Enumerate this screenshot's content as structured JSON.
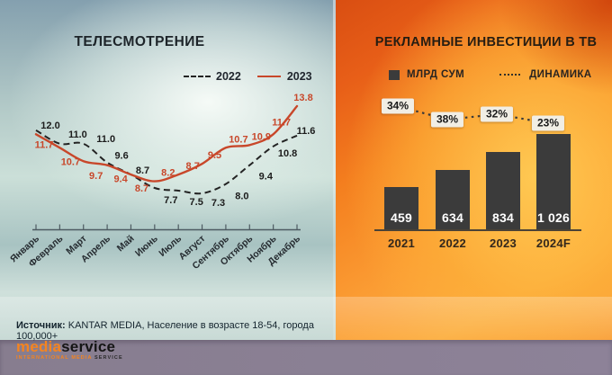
{
  "panels": {
    "tv_title": "ТЕЛЕСМОТРЕНИЕ",
    "invest_title": "РЕКЛАМНЫЕ ИНВЕСТИЦИИ В ТВ"
  },
  "chart_data": [
    {
      "type": "line",
      "title": "ТЕЛЕСМОТРЕНИЕ",
      "categories": [
        "Январь",
        "Февраль",
        "Март",
        "Апрель",
        "Май",
        "Июнь",
        "Июль",
        "Август",
        "Сентябрь",
        "Октябрь",
        "Ноябрь",
        "Декабрь"
      ],
      "series": [
        {
          "name": "2022",
          "line_style": "dashed",
          "color": "#232323",
          "values": [
            12.0,
            11.0,
            11.0,
            9.6,
            8.7,
            7.7,
            7.5,
            7.3,
            8.0,
            9.4,
            10.8,
            11.6
          ]
        },
        {
          "name": "2023",
          "line_style": "solid",
          "color": "#c8472a",
          "values": [
            11.7,
            10.7,
            9.7,
            9.4,
            8.7,
            8.2,
            8.7,
            9.5,
            10.7,
            10.9,
            11.7,
            13.8
          ]
        }
      ],
      "ylim": [
        7,
        14.5
      ],
      "grid": false,
      "legend_position": "top-right",
      "value_labels_shown": true
    },
    {
      "type": "bar",
      "title": "РЕКЛАМНЫЕ ИНВЕСТИЦИИ В ТВ",
      "categories": [
        "2021",
        "2022",
        "2023",
        "2024F"
      ],
      "series": [
        {
          "name": "МЛРД СУМ",
          "type": "bar",
          "color": "#3b3b3b",
          "values": [
            459,
            634,
            834,
            1026
          ],
          "value_labels": [
            "459",
            "634",
            "834",
            "1 026"
          ]
        },
        {
          "name": "ДИНАМИКА",
          "type": "line",
          "line_style": "dotted",
          "color": "#3a3a3a",
          "unit": "%",
          "values": [
            34,
            38,
            32,
            23
          ],
          "value_labels": [
            "34%",
            "38%",
            "32%",
            "23%"
          ]
        }
      ],
      "ylim": [
        0,
        1100
      ],
      "grid": false,
      "legend_position": "top"
    }
  ],
  "footer": {
    "source_label": "Источник:",
    "source_text": "KANTAR MEDIA, Население в возрасте 18-54, города 100,000+"
  },
  "logo": {
    "part1": "media",
    "part2": "service",
    "tagline_part1": "INTERNATIONAL MEDIA",
    "tagline_part2": "SERVICE"
  },
  "colors": {
    "series_2022": "#232323",
    "series_2023": "#c8472a",
    "bar_fill": "#3b3b3b",
    "percent_box_bg": "#f1eee5",
    "left_panel_base": "#b3cac8",
    "right_panel_base": "#f89a35",
    "table_surface": "#8b8093",
    "logo_orange": "#f5841f"
  }
}
